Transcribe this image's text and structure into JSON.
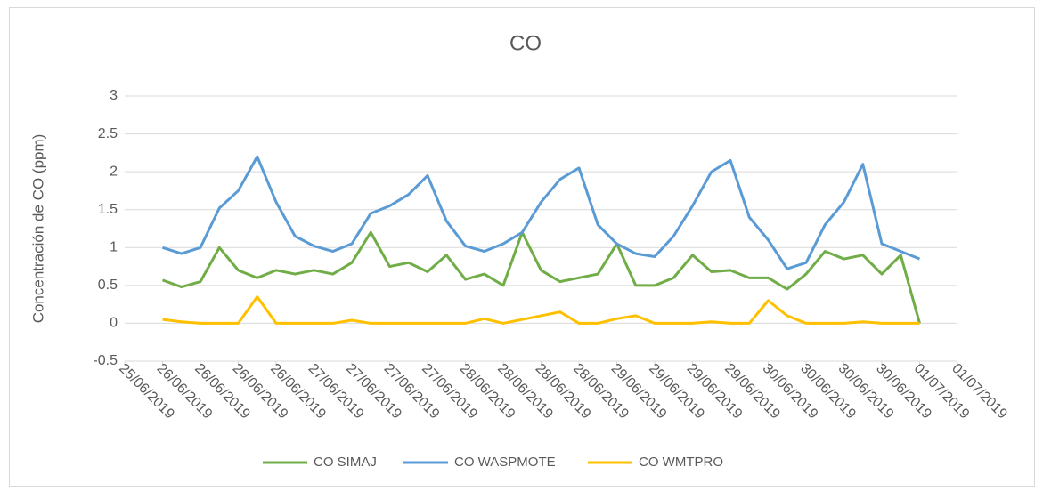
{
  "chart_data": {
    "type": "line",
    "title": "CO",
    "y_label": "Concentración de CO (ppm)",
    "xlim": [
      43641.75,
      43647.25
    ],
    "xticks": [
      {
        "value": 43641.75,
        "label": "25/06/2019"
      },
      {
        "value": 43642,
        "label": "26/06/2019"
      },
      {
        "value": 43642.25,
        "label": "26/06/2019"
      },
      {
        "value": 43642.5,
        "label": "26/06/2019"
      },
      {
        "value": 43642.75,
        "label": "26/06/2019"
      },
      {
        "value": 43643,
        "label": "27/06/2019"
      },
      {
        "value": 43643.25,
        "label": "27/06/2019"
      },
      {
        "value": 43643.5,
        "label": "27/06/2019"
      },
      {
        "value": 43643.75,
        "label": "27/06/2019"
      },
      {
        "value": 43644,
        "label": "28/06/2019"
      },
      {
        "value": 43644.25,
        "label": "28/06/2019"
      },
      {
        "value": 43644.5,
        "label": "28/06/2019"
      },
      {
        "value": 43644.75,
        "label": "28/06/2019"
      },
      {
        "value": 43645,
        "label": "29/06/2019"
      },
      {
        "value": 43645.25,
        "label": "29/06/2019"
      },
      {
        "value": 43645.5,
        "label": "29/06/2019"
      },
      {
        "value": 43645.75,
        "label": "29/06/2019"
      },
      {
        "value": 43646,
        "label": "30/06/2019"
      },
      {
        "value": 43646.25,
        "label": "30/06/2019"
      },
      {
        "value": 43646.5,
        "label": "30/06/2019"
      },
      {
        "value": 43646.75,
        "label": "30/06/2019"
      },
      {
        "value": 43647,
        "label": "01/07/2019"
      },
      {
        "value": 43647.25,
        "label": "01/07/2019"
      }
    ],
    "ylim": [
      -0.5,
      3
    ],
    "yticks": [
      -0.5,
      0,
      0.5,
      1,
      1.5,
      2,
      2.5,
      3
    ],
    "grid": true,
    "legend": "bottom",
    "x": [
      43642,
      43642.125,
      43642.25,
      43642.375,
      43642.5,
      43642.625,
      43642.75,
      43642.875,
      43643,
      43643.125,
      43643.25,
      43643.375,
      43643.5,
      43643.625,
      43643.75,
      43643.875,
      43644,
      43644.125,
      43644.25,
      43644.375,
      43644.5,
      43644.625,
      43644.75,
      43644.875,
      43645,
      43645.125,
      43645.25,
      43645.375,
      43645.5,
      43645.625,
      43645.75,
      43645.875,
      43646,
      43646.125,
      43646.25,
      43646.375,
      43646.5,
      43646.625,
      43646.75,
      43646.875,
      43647
    ],
    "series": [
      {
        "name": "CO SIMAJ",
        "color": "#70ad47",
        "values": [
          0.57,
          0.48,
          0.55,
          1.0,
          0.7,
          0.6,
          0.7,
          0.65,
          0.7,
          0.65,
          0.8,
          1.2,
          0.75,
          0.8,
          0.68,
          0.9,
          0.58,
          0.65,
          0.5,
          1.2,
          0.7,
          0.55,
          0.6,
          0.65,
          1.05,
          0.5,
          0.5,
          0.6,
          0.9,
          0.68,
          0.7,
          0.6,
          0.6,
          0.45,
          0.65,
          0.95,
          0.85,
          0.9,
          0.65,
          0.9,
          0.0
        ]
      },
      {
        "name": "CO WASPMOTE",
        "color": "#5b9bd5",
        "values": [
          1.0,
          0.92,
          1.0,
          1.52,
          1.75,
          2.2,
          1.6,
          1.15,
          1.02,
          0.95,
          1.05,
          1.45,
          1.55,
          1.7,
          1.95,
          1.35,
          1.02,
          0.95,
          1.05,
          1.2,
          1.6,
          1.9,
          2.05,
          1.3,
          1.05,
          0.92,
          0.88,
          1.15,
          1.55,
          2.0,
          2.15,
          1.4,
          1.1,
          0.72,
          0.8,
          1.3,
          1.6,
          2.1,
          1.05,
          0.95,
          0.85
        ]
      },
      {
        "name": "CO WMTPRO",
        "color": "#ffc000",
        "values": [
          0.05,
          0.02,
          0,
          0,
          0,
          0.35,
          0,
          0,
          0,
          0,
          0.04,
          0,
          0,
          0,
          0,
          0,
          0,
          0.06,
          0,
          0.05,
          0.1,
          0.15,
          0,
          0,
          0.06,
          0.1,
          0,
          0,
          0,
          0.02,
          0,
          0,
          0.3,
          0.1,
          0,
          0,
          0,
          0.02,
          0,
          0,
          0
        ]
      }
    ]
  }
}
